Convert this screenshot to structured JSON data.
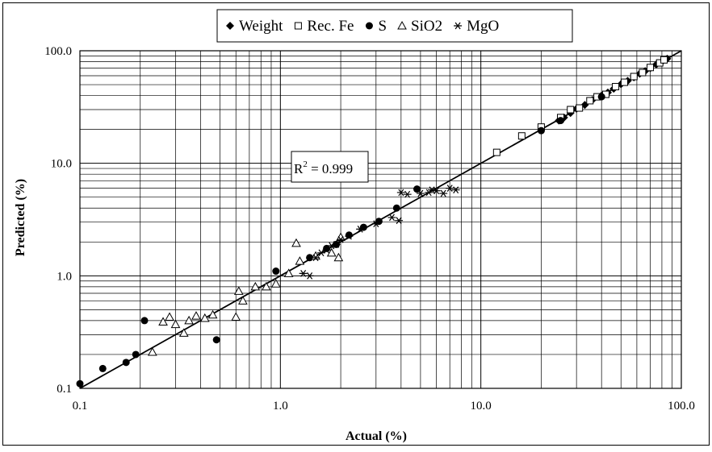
{
  "chart_data": {
    "type": "scatter",
    "xscale": "log",
    "yscale": "log",
    "xlim": [
      0.1,
      100.0
    ],
    "ylim": [
      0.1,
      100.0
    ],
    "xlabel": "Actual (%)",
    "ylabel": "Predicted (%)",
    "xticks": [
      "0.1",
      "1.0",
      "10.0",
      "100.0"
    ],
    "yticks": [
      "0.1",
      "1.0",
      "10.0",
      "100.0"
    ],
    "grid": true,
    "legend_position": "top-center",
    "annotation": {
      "base": "R",
      "sup": "2",
      "rest": " = 0.999"
    },
    "fit_line": {
      "x": [
        0.1,
        100.0
      ],
      "y": [
        0.1,
        100.0
      ]
    },
    "series": [
      {
        "name": "Weight",
        "marker": "diamond",
        "points": [
          [
            24.5,
            24.0
          ],
          [
            26.0,
            25.5
          ],
          [
            28.0,
            28.0
          ],
          [
            30.0,
            30.5
          ],
          [
            33.0,
            33.0
          ],
          [
            36.0,
            36.5
          ],
          [
            40.0,
            40.0
          ],
          [
            43.0,
            42.5
          ],
          [
            46.0,
            46.0
          ],
          [
            50.0,
            50.5
          ],
          [
            54.0,
            54.0
          ],
          [
            58.0,
            58.0
          ],
          [
            62.0,
            62.5
          ],
          [
            66.0,
            66.0
          ],
          [
            70.0,
            70.0
          ],
          [
            75.0,
            75.5
          ],
          [
            80.0,
            80.0
          ],
          [
            85.0,
            85.0
          ]
        ]
      },
      {
        "name": "Rec. Fe",
        "marker": "square",
        "points": [
          [
            12.0,
            12.5
          ],
          [
            16.0,
            17.5
          ],
          [
            20.0,
            21.0
          ],
          [
            25.0,
            25.5
          ],
          [
            28.0,
            30.0
          ],
          [
            31.0,
            31.0
          ],
          [
            35.0,
            36.0
          ],
          [
            38.0,
            39.0
          ],
          [
            42.0,
            41.0
          ],
          [
            47.0,
            48.0
          ],
          [
            52.0,
            52.5
          ],
          [
            58.0,
            59.0
          ],
          [
            64.0,
            64.0
          ],
          [
            70.0,
            71.0
          ],
          [
            78.0,
            78.0
          ],
          [
            82.0,
            83.0
          ]
        ]
      },
      {
        "name": "S",
        "marker": "circle",
        "points": [
          [
            0.1,
            0.11
          ],
          [
            0.13,
            0.15
          ],
          [
            0.17,
            0.17
          ],
          [
            0.19,
            0.2
          ],
          [
            0.21,
            0.4
          ],
          [
            0.48,
            0.27
          ],
          [
            0.95,
            1.1
          ],
          [
            1.4,
            1.45
          ],
          [
            1.7,
            1.75
          ],
          [
            1.9,
            1.9
          ],
          [
            2.2,
            2.3
          ],
          [
            2.6,
            2.7
          ],
          [
            3.1,
            3.05
          ],
          [
            3.8,
            4.0
          ],
          [
            4.8,
            5.9
          ],
          [
            20.0,
            19.5
          ],
          [
            25.0,
            24.0
          ],
          [
            40.0,
            39.0
          ]
        ]
      },
      {
        "name": "SiO2",
        "marker": "triangle",
        "points": [
          [
            0.23,
            0.21
          ],
          [
            0.26,
            0.39
          ],
          [
            0.28,
            0.43
          ],
          [
            0.3,
            0.37
          ],
          [
            0.33,
            0.31
          ],
          [
            0.35,
            0.4
          ],
          [
            0.38,
            0.44
          ],
          [
            0.42,
            0.42
          ],
          [
            0.46,
            0.45
          ],
          [
            0.6,
            0.43
          ],
          [
            0.62,
            0.73
          ],
          [
            0.65,
            0.6
          ],
          [
            0.75,
            0.8
          ],
          [
            0.85,
            0.8
          ],
          [
            0.95,
            0.85
          ],
          [
            1.1,
            1.05
          ],
          [
            1.2,
            1.95
          ],
          [
            1.25,
            1.35
          ],
          [
            1.5,
            1.5
          ],
          [
            1.8,
            1.6
          ],
          [
            1.95,
            1.45
          ],
          [
            2.0,
            2.2
          ]
        ]
      },
      {
        "name": "MgO",
        "marker": "asterisk",
        "points": [
          [
            1.3,
            1.05
          ],
          [
            1.4,
            1.0
          ],
          [
            1.5,
            1.45
          ],
          [
            1.6,
            1.6
          ],
          [
            1.7,
            1.7
          ],
          [
            1.8,
            1.85
          ],
          [
            1.9,
            1.9
          ],
          [
            2.0,
            2.1
          ],
          [
            2.2,
            2.25
          ],
          [
            2.5,
            2.6
          ],
          [
            3.0,
            2.9
          ],
          [
            3.6,
            3.3
          ],
          [
            3.9,
            3.1
          ],
          [
            4.0,
            5.5
          ],
          [
            4.3,
            5.3
          ],
          [
            5.0,
            5.4
          ],
          [
            5.5,
            5.5
          ],
          [
            5.7,
            5.8
          ],
          [
            6.0,
            5.7
          ],
          [
            6.5,
            5.4
          ],
          [
            7.0,
            6.0
          ],
          [
            7.5,
            5.8
          ]
        ]
      }
    ]
  }
}
